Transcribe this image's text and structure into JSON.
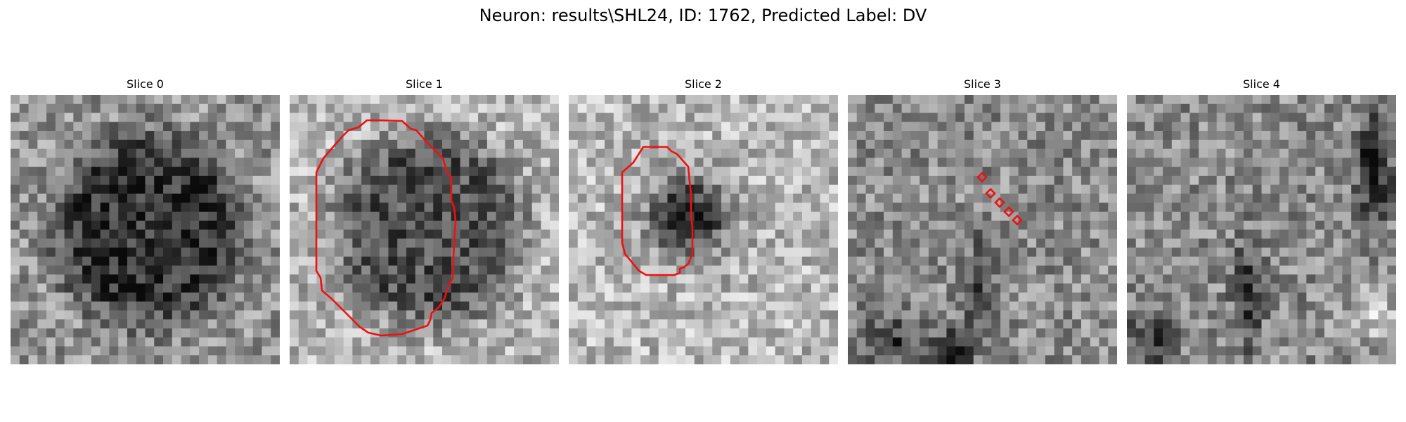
{
  "title": "Neuron: results\\SHL24, ID: 1762, Predicted Label: DV",
  "overlay_color": "#ee1111",
  "panels": [
    {
      "label": "Slice 0",
      "blob": "large-dark",
      "contour": "none"
    },
    {
      "label": "Slice 1",
      "blob": "large-dark",
      "contour": "polygon"
    },
    {
      "label": "Slice 2",
      "blob": "small-dark",
      "contour": "polygon"
    },
    {
      "label": "Slice 3",
      "blob": "none",
      "contour": "diamond-markers"
    },
    {
      "label": "Slice 4",
      "blob": "none",
      "contour": "none"
    }
  ]
}
